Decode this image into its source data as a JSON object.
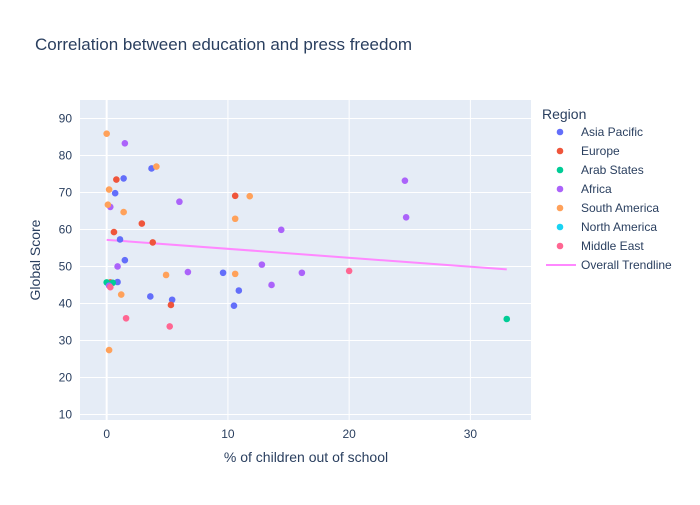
{
  "chart_data": {
    "type": "scatter",
    "title": "Correlation between education and press freedom",
    "xlabel": "% of children out of school",
    "ylabel": "Global Score",
    "xlim": [
      -2.2,
      35
    ],
    "ylim": [
      8.5,
      95
    ],
    "x_ticks": [
      0,
      10,
      20,
      30
    ],
    "y_ticks": [
      10,
      20,
      30,
      40,
      50,
      60,
      70,
      80,
      90
    ],
    "grid": true,
    "background": "#e5ecf6",
    "legend": {
      "title": "Region",
      "placement": "right"
    },
    "series": [
      {
        "name": "Asia Pacific",
        "color": "#636efa",
        "points": [
          [
            3.7,
            76.5
          ],
          [
            1.4,
            73.8
          ],
          [
            0.7,
            69.8
          ],
          [
            1.1,
            57.3
          ],
          [
            1.5,
            51.7
          ],
          [
            9.6,
            48.3
          ],
          [
            0.9,
            45.8
          ],
          [
            3.6,
            41.9
          ],
          [
            5.4,
            41.0
          ],
          [
            10.9,
            43.5
          ],
          [
            10.5,
            39.4
          ]
        ]
      },
      {
        "name": "Europe",
        "color": "#EF553B",
        "points": [
          [
            0.8,
            73.5
          ],
          [
            10.6,
            69.1
          ],
          [
            2.9,
            61.6
          ],
          [
            0.6,
            59.3
          ],
          [
            3.8,
            56.5
          ],
          [
            0.3,
            45.7
          ],
          [
            5.3,
            39.6
          ]
        ]
      },
      {
        "name": "Arab States",
        "color": "#00cc96",
        "points": [
          [
            0.0,
            45.7
          ],
          [
            0.5,
            45.6
          ],
          [
            33.0,
            35.8
          ]
        ]
      },
      {
        "name": "Africa",
        "color": "#ab63fa",
        "points": [
          [
            1.5,
            83.3
          ],
          [
            24.6,
            73.2
          ],
          [
            6.0,
            67.5
          ],
          [
            0.3,
            66.1
          ],
          [
            24.7,
            63.3
          ],
          [
            14.4,
            59.9
          ],
          [
            0.9,
            50.0
          ],
          [
            6.7,
            48.5
          ],
          [
            12.8,
            50.5
          ],
          [
            16.1,
            48.3
          ],
          [
            13.6,
            45.0
          ],
          [
            0.2,
            44.8
          ]
        ]
      },
      {
        "name": "South America",
        "color": "#FFA15A",
        "points": [
          [
            0.0,
            85.9
          ],
          [
            4.1,
            77.0
          ],
          [
            0.2,
            70.8
          ],
          [
            11.8,
            69.0
          ],
          [
            0.1,
            66.7
          ],
          [
            1.4,
            64.7
          ],
          [
            10.6,
            62.9
          ],
          [
            4.9,
            47.7
          ],
          [
            10.6,
            48.0
          ],
          [
            1.2,
            42.4
          ],
          [
            0.2,
            27.4
          ]
        ]
      },
      {
        "name": "North America",
        "color": "#19d3f3",
        "points": []
      },
      {
        "name": "Middle  East",
        "color": "#FF6692",
        "points": [
          [
            20.0,
            48.8
          ],
          [
            1.6,
            36.0
          ],
          [
            5.2,
            33.8
          ],
          [
            0.3,
            44.4
          ]
        ]
      }
    ],
    "trendline": {
      "name": "Overall Trendline",
      "color": "#ff88ff",
      "x": [
        0.0,
        33.0
      ],
      "y": [
        57.2,
        49.2
      ]
    }
  }
}
